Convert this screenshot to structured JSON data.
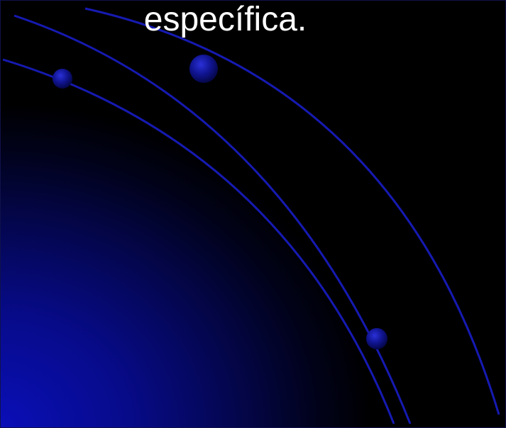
{
  "slide": {
    "text": "específica."
  },
  "colors": {
    "background": "#000000",
    "glow": "#0a0fb8",
    "arc": "#1a1fd0",
    "bullet": "#0f1390",
    "text": "#ffffff"
  }
}
